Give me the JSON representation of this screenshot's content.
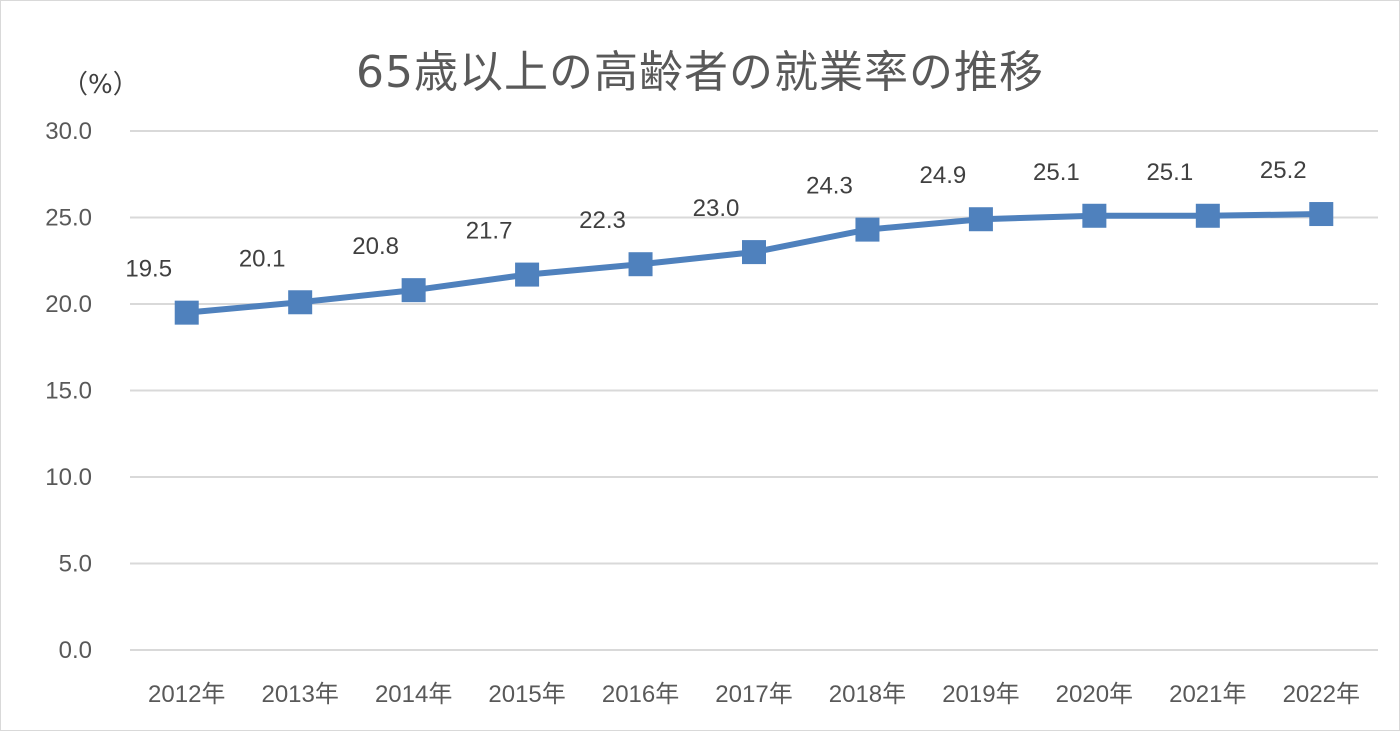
{
  "chart_data": {
    "type": "line",
    "title": "65歳以上の高齢者の就業率の推移",
    "ylabel": "（%）",
    "xlabel": "",
    "categories": [
      "2012年",
      "2013年",
      "2014年",
      "2015年",
      "2016年",
      "2017年",
      "2018年",
      "2019年",
      "2020年",
      "2021年",
      "2022年"
    ],
    "y_ticks": [
      "0.0",
      "5.0",
      "10.0",
      "15.0",
      "20.0",
      "25.0",
      "30.0"
    ],
    "ylim": [
      0,
      30
    ],
    "grid": true,
    "legend": "none",
    "series": [
      {
        "values": [
          19.5,
          20.1,
          20.8,
          21.7,
          22.3,
          23.0,
          24.3,
          24.9,
          25.1,
          25.1,
          25.2
        ],
        "labels": [
          "19.5",
          "20.1",
          "20.8",
          "21.7",
          "22.3",
          "23.0",
          "24.3",
          "24.9",
          "25.1",
          "25.1",
          "25.2"
        ],
        "color": "#4f81bd",
        "marker": "square"
      }
    ],
    "colors": {
      "grid": "#d9d9d9",
      "line": "#4f81bd"
    }
  }
}
